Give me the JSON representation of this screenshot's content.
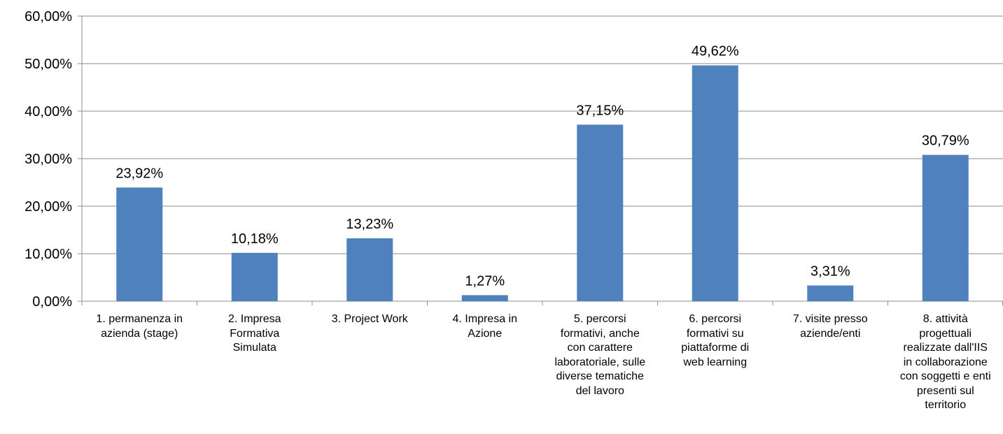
{
  "chart_data": {
    "type": "bar",
    "categories": [
      "1. permanenza in\nazienda (stage)",
      "2. Impresa\nFormativa\nSimulata",
      "3. Project Work",
      "4. Impresa in\nAzione",
      "5. percorsi\nformativi, anche\ncon carattere\nlaboratoriale, sulle\ndiverse tematiche\ndel lavoro",
      "6. percorsi\nformativi su\npiattaforme di\nweb learning",
      "7. visite presso\naziende/enti",
      "8. attività\nprogettuali\nrealizzate dall'IIS\nin collaborazione\ncon soggetti e enti\npresenti sul\nterritorio"
    ],
    "values": [
      23.92,
      10.18,
      13.23,
      1.27,
      37.15,
      49.62,
      3.31,
      30.79
    ],
    "data_labels": [
      "23,92%",
      "10,18%",
      "13,23%",
      "1,27%",
      "37,15%",
      "49,62%",
      "3,31%",
      "30,79%"
    ],
    "y_ticks": [
      "0,00%",
      "10,00%",
      "20,00%",
      "30,00%",
      "40,00%",
      "50,00%",
      "60,00%"
    ],
    "ylim": [
      0,
      60
    ],
    "grid": true,
    "bar_color": "#4f81bd",
    "title": "",
    "xlabel": "",
    "ylabel": ""
  }
}
